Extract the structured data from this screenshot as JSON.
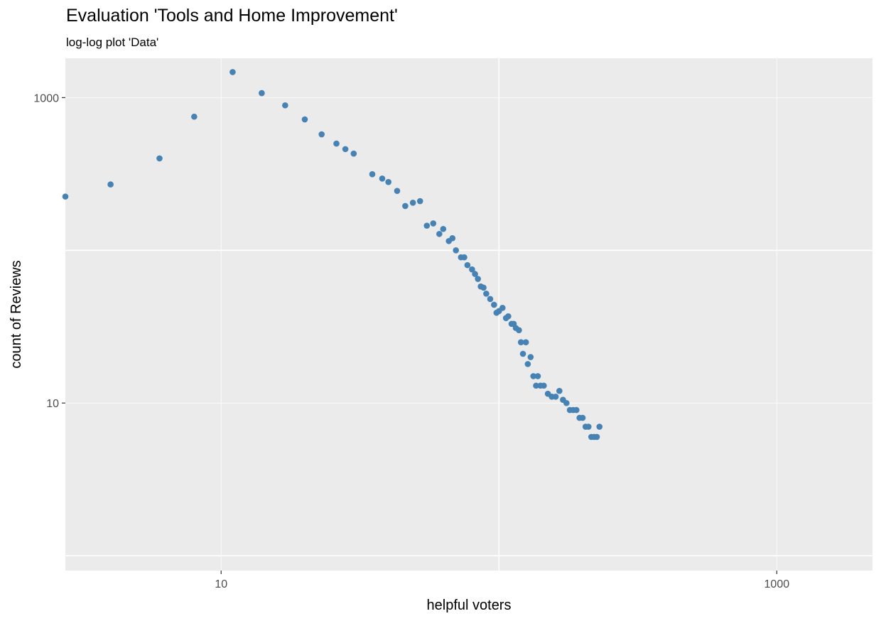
{
  "chart_data": {
    "type": "scatter",
    "title": "Evaluation 'Tools and Home Improvement'",
    "subtitle": "log-log plot 'Data'",
    "xlabel": "helpful voters",
    "ylabel": "count of Reviews",
    "x_scale": "log",
    "y_scale": "log",
    "xlim": [
      2.75,
      2210
    ],
    "ylim": [
      0.8,
      1810
    ],
    "x_ticks": [
      10,
      1000
    ],
    "x_tick_labels": [
      "10",
      "1000"
    ],
    "y_ticks": [
      10,
      1000
    ],
    "y_tick_labels": [
      "10",
      "1000"
    ],
    "grid": true,
    "point_color": "#4682b4",
    "panel_color": "#ebebeb",
    "points": [
      [
        2.75,
        225
      ],
      [
        4,
        270
      ],
      [
        6,
        400
      ],
      [
        8,
        750
      ],
      [
        11,
        1470
      ],
      [
        14,
        1070
      ],
      [
        17,
        890
      ],
      [
        20,
        720
      ],
      [
        23,
        575
      ],
      [
        26,
        500
      ],
      [
        28,
        460
      ],
      [
        30,
        430
      ],
      [
        35,
        315
      ],
      [
        38,
        295
      ],
      [
        40,
        280
      ],
      [
        43,
        245
      ],
      [
        46,
        195
      ],
      [
        49,
        205
      ],
      [
        52,
        210
      ],
      [
        55,
        145
      ],
      [
        58,
        150
      ],
      [
        61,
        128
      ],
      [
        63,
        138
      ],
      [
        66,
        115
      ],
      [
        68,
        120
      ],
      [
        70,
        100
      ],
      [
        73,
        90
      ],
      [
        75,
        90
      ],
      [
        77,
        80
      ],
      [
        80,
        75
      ],
      [
        82,
        70
      ],
      [
        84,
        65
      ],
      [
        86,
        58
      ],
      [
        88,
        57
      ],
      [
        90,
        52
      ],
      [
        93,
        48
      ],
      [
        96,
        44
      ],
      [
        98,
        39
      ],
      [
        100,
        40
      ],
      [
        103,
        42
      ],
      [
        106,
        36
      ],
      [
        108,
        37
      ],
      [
        111,
        33
      ],
      [
        113,
        33
      ],
      [
        115,
        31
      ],
      [
        118,
        30
      ],
      [
        120,
        25
      ],
      [
        122,
        21
      ],
      [
        125,
        25
      ],
      [
        127,
        18
      ],
      [
        130,
        20
      ],
      [
        133,
        15
      ],
      [
        136,
        13
      ],
      [
        138,
        15
      ],
      [
        141,
        13
      ],
      [
        145,
        13
      ],
      [
        150,
        11.5
      ],
      [
        155,
        11
      ],
      [
        160,
        11
      ],
      [
        165,
        12
      ],
      [
        170,
        10.5
      ],
      [
        175,
        10
      ],
      [
        180,
        9
      ],
      [
        185,
        9
      ],
      [
        190,
        9
      ],
      [
        195,
        8
      ],
      [
        200,
        8
      ],
      [
        205,
        7
      ],
      [
        210,
        7
      ],
      [
        215,
        6
      ],
      [
        220,
        6
      ],
      [
        225,
        6
      ],
      [
        230,
        7
      ]
    ]
  }
}
